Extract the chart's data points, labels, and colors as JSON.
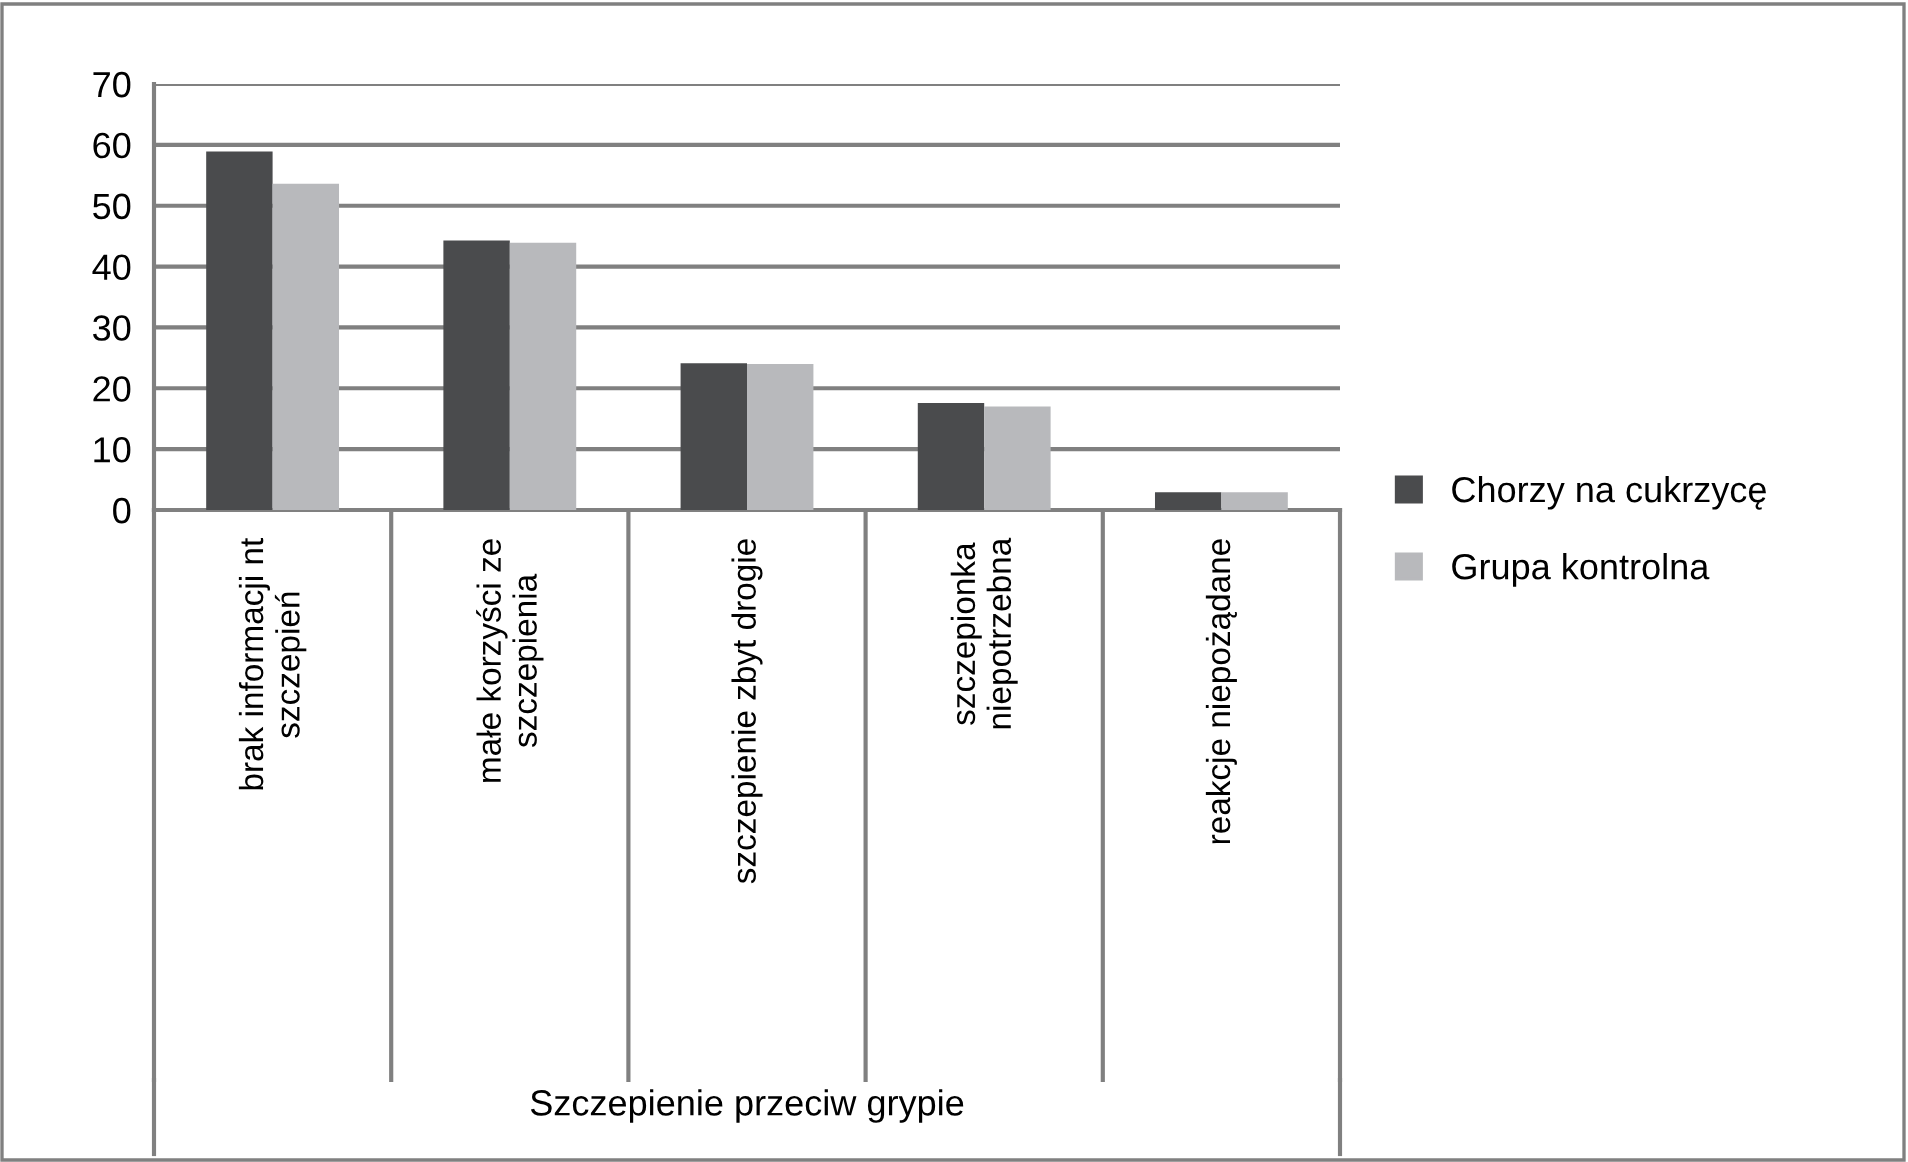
{
  "chart_data": {
    "type": "bar",
    "annotations": [
      "Szczepienie przeciw grypie"
    ],
    "categories": [
      "brak informacji nt\nszczepień",
      "małe korzyści ze\nszczepienia",
      "szczepienie zbyt drogie",
      "szczepionka\nniepotrzebna",
      "reakcje niepożądane"
    ],
    "series": [
      {
        "name": "Chorzy na cukrzycę",
        "color": "#4a4b4d",
        "values": [
          58.9,
          44.3,
          24.1,
          17.6,
          2.9
        ]
      },
      {
        "name": "Grupa kontrolna",
        "color": "#b8b9bc",
        "values": [
          53.6,
          43.9,
          24.0,
          17.0,
          2.9
        ]
      }
    ],
    "ylim": [
      0,
      70
    ],
    "yticks": [
      0,
      10,
      20,
      30,
      40,
      50,
      60,
      70
    ],
    "grid": "y",
    "legend": "right"
  }
}
